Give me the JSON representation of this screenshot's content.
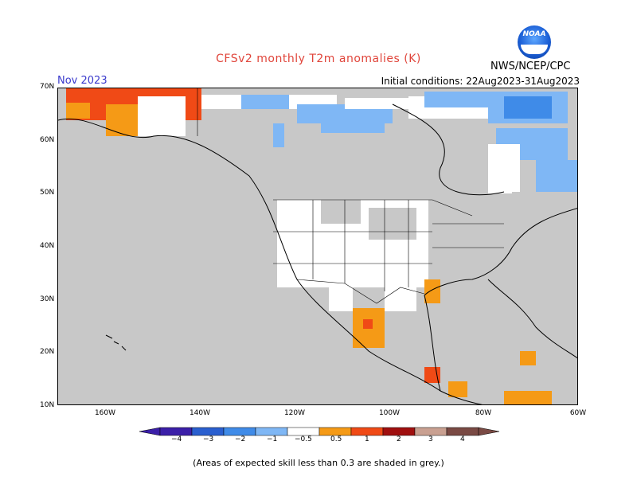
{
  "header": {
    "title": "CFSv2 monthly T2m anomalies (K)",
    "month": "Nov 2023",
    "initial_conditions": "Initial conditions: 22Aug2023-31Aug2023",
    "agency": "NWS/NCEP/CPC",
    "logo_text": "NOAA"
  },
  "map": {
    "lat_labels": [
      "70N",
      "60N",
      "50N",
      "40N",
      "30N",
      "20N",
      "10N"
    ],
    "lon_labels": [
      "160W",
      "140W",
      "120W",
      "100W",
      "80W",
      "60W"
    ],
    "skill_mask_color": "#c8c8c8",
    "ocean_color": "#c8c8c8"
  },
  "colorbar": {
    "labels": [
      "−4",
      "−3",
      "−2",
      "−1",
      "−0.5",
      "0.5",
      "1",
      "2",
      "3",
      "4"
    ],
    "colors": [
      "#3b1fa8",
      "#2a5fcf",
      "#3f8be8",
      "#7fb7f5",
      "#ffffff",
      "#f59a16",
      "#f04a16",
      "#a00f0f",
      "#c9a091",
      "#7a4a44"
    ]
  },
  "footnote": "(Areas of expected skill less than 0.3 are shaded in grey.)"
}
